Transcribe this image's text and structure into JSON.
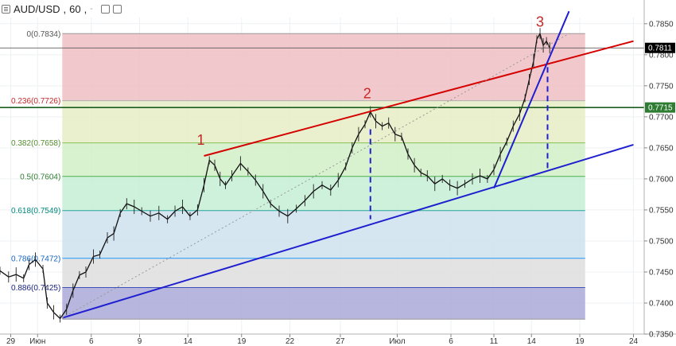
{
  "toolbar": {
    "symbol": "AUD/USD",
    "separator": ",",
    "interval": "60",
    "dropdown_caret": "-",
    "icons": [
      "menu-icon",
      "box-icon",
      "box-icon"
    ]
  },
  "chart_data": {
    "type": "candlestick",
    "title": "AUD/USD, 60",
    "ylim": [
      0.735,
      0.786
    ],
    "y_ticks": [
      "0.7850",
      "0.7800",
      "0.7750",
      "0.7700",
      "0.7650",
      "0.7600",
      "0.7550",
      "0.7500",
      "0.7450",
      "0.7400",
      "0.7350"
    ],
    "x_ticks": [
      "29",
      "Июн",
      "6",
      "9",
      "14",
      "19",
      "22",
      "27",
      "Июл",
      "6",
      "11",
      "14",
      "19",
      "24"
    ],
    "x_tick_days": [
      -2,
      0.5,
      5.5,
      10,
      14.5,
      19.5,
      24,
      28.7,
      34,
      39,
      43,
      46.5,
      51,
      56
    ],
    "price_series": [
      {
        "day": -3.0,
        "price": 0.7452
      },
      {
        "day": -2.2,
        "price": 0.7442
      },
      {
        "day": -1.5,
        "price": 0.7446
      },
      {
        "day": -0.8,
        "price": 0.744
      },
      {
        "day": -0.3,
        "price": 0.7462
      },
      {
        "day": 0.3,
        "price": 0.747
      },
      {
        "day": 1.0,
        "price": 0.7455
      },
      {
        "day": 1.4,
        "price": 0.74
      },
      {
        "day": 2.0,
        "price": 0.7385
      },
      {
        "day": 2.6,
        "price": 0.7375
      },
      {
        "day": 3.2,
        "price": 0.739
      },
      {
        "day": 3.8,
        "price": 0.742
      },
      {
        "day": 4.4,
        "price": 0.7445
      },
      {
        "day": 5.0,
        "price": 0.745
      },
      {
        "day": 5.7,
        "price": 0.7475
      },
      {
        "day": 6.3,
        "price": 0.7478
      },
      {
        "day": 7.0,
        "price": 0.7505
      },
      {
        "day": 7.6,
        "price": 0.7512
      },
      {
        "day": 8.2,
        "price": 0.7545
      },
      {
        "day": 8.8,
        "price": 0.756
      },
      {
        "day": 9.5,
        "price": 0.7555
      },
      {
        "day": 10.2,
        "price": 0.7548
      },
      {
        "day": 11.0,
        "price": 0.754
      },
      {
        "day": 11.8,
        "price": 0.7545
      },
      {
        "day": 12.6,
        "price": 0.7535
      },
      {
        "day": 13.3,
        "price": 0.7548
      },
      {
        "day": 14.0,
        "price": 0.7555
      },
      {
        "day": 14.7,
        "price": 0.754
      },
      {
        "day": 15.4,
        "price": 0.755
      },
      {
        "day": 16.0,
        "price": 0.759
      },
      {
        "day": 16.5,
        "price": 0.763
      },
      {
        "day": 17.0,
        "price": 0.7622
      },
      {
        "day": 17.5,
        "price": 0.76
      },
      {
        "day": 18.0,
        "price": 0.759
      },
      {
        "day": 18.6,
        "price": 0.7605
      },
      {
        "day": 19.4,
        "price": 0.7625
      },
      {
        "day": 20.1,
        "price": 0.7612
      },
      {
        "day": 20.8,
        "price": 0.7598
      },
      {
        "day": 21.5,
        "price": 0.758
      },
      {
        "day": 22.2,
        "price": 0.756
      },
      {
        "day": 23.0,
        "price": 0.7548
      },
      {
        "day": 23.8,
        "price": 0.754
      },
      {
        "day": 24.6,
        "price": 0.7552
      },
      {
        "day": 25.4,
        "price": 0.7565
      },
      {
        "day": 26.2,
        "price": 0.758
      },
      {
        "day": 27.0,
        "price": 0.759
      },
      {
        "day": 27.8,
        "price": 0.7582
      },
      {
        "day": 28.5,
        "price": 0.7598
      },
      {
        "day": 29.2,
        "price": 0.762
      },
      {
        "day": 29.8,
        "price": 0.765
      },
      {
        "day": 30.4,
        "price": 0.7672
      },
      {
        "day": 31.0,
        "price": 0.7688
      },
      {
        "day": 31.5,
        "price": 0.7708
      },
      {
        "day": 32.0,
        "price": 0.7693
      },
      {
        "day": 32.6,
        "price": 0.7685
      },
      {
        "day": 33.2,
        "price": 0.769
      },
      {
        "day": 33.8,
        "price": 0.7672
      },
      {
        "day": 34.4,
        "price": 0.7668
      },
      {
        "day": 35.0,
        "price": 0.764
      },
      {
        "day": 35.6,
        "price": 0.7622
      },
      {
        "day": 36.2,
        "price": 0.761
      },
      {
        "day": 36.8,
        "price": 0.7605
      },
      {
        "day": 37.5,
        "price": 0.7592
      },
      {
        "day": 38.2,
        "price": 0.76
      },
      {
        "day": 38.9,
        "price": 0.759
      },
      {
        "day": 39.6,
        "price": 0.7585
      },
      {
        "day": 40.3,
        "price": 0.7592
      },
      {
        "day": 41.0,
        "price": 0.76
      },
      {
        "day": 41.7,
        "price": 0.7605
      },
      {
        "day": 42.4,
        "price": 0.76
      },
      {
        "day": 43.0,
        "price": 0.7615
      },
      {
        "day": 43.6,
        "price": 0.764
      },
      {
        "day": 44.2,
        "price": 0.766
      },
      {
        "day": 44.8,
        "price": 0.7685
      },
      {
        "day": 45.4,
        "price": 0.7705
      },
      {
        "day": 45.9,
        "price": 0.773
      },
      {
        "day": 46.3,
        "price": 0.776
      },
      {
        "day": 46.7,
        "price": 0.779
      },
      {
        "day": 47.0,
        "price": 0.7825
      },
      {
        "day": 47.3,
        "price": 0.7834
      },
      {
        "day": 47.6,
        "price": 0.7815
      },
      {
        "day": 47.9,
        "price": 0.7822
      },
      {
        "day": 48.2,
        "price": 0.7811
      }
    ],
    "fibonacci": {
      "levels": [
        {
          "ratio": "0",
          "price": 0.7834,
          "label": "0(0.7834)",
          "line_color": "#999999",
          "fill": "#efbfc3"
        },
        {
          "ratio": "0.236",
          "price": 0.7726,
          "label": "0.236(0.7726)",
          "line_color": "#b0b0b0",
          "fill": "#e6ecc4"
        },
        {
          "ratio": "0.382",
          "price": 0.7658,
          "label": "0.382(0.7658)",
          "line_color": "#88c057",
          "fill": "#d1efc6"
        },
        {
          "ratio": "0.5",
          "price": 0.7604,
          "label": "0.5(0.7604)",
          "line_color": "#4caf50",
          "fill": "#c5efd5"
        },
        {
          "ratio": "0.618",
          "price": 0.7549,
          "label": "0.618(0.7549)",
          "line_color": "#26a69a",
          "fill": "#cfe2ef"
        },
        {
          "ratio": "0.786",
          "price": 0.7472,
          "label": "0.786(0.7472)",
          "line_color": "#2196f3",
          "fill": "#dedede"
        },
        {
          "ratio": "0.886",
          "price": 0.7425,
          "label": "0.886(0.7425)",
          "line_color": "#3f51b5",
          "fill": "#a9a9d8"
        },
        {
          "ratio": "1",
          "price": 0.7374,
          "label": "",
          "line_color": "#999999",
          "fill": ""
        }
      ],
      "label_colors": [
        "#555555",
        "#c62828",
        "#558b2f",
        "#2e7d32",
        "#00897b",
        "#1565c0",
        "#1a237e"
      ]
    },
    "trendlines": [
      {
        "name": "red-channel",
        "color": "#d50000",
        "from": {
          "day": 16.0,
          "price": 0.7637
        },
        "to": {
          "day": 56.0,
          "price": 0.7822
        }
      },
      {
        "name": "blue-support",
        "color": "#1f1fd0",
        "from": {
          "day": 2.8,
          "price": 0.7376
        },
        "to": {
          "day": 56.0,
          "price": 0.7655
        }
      },
      {
        "name": "blue-steep",
        "color": "#1f1fd0",
        "from": {
          "day": 43.0,
          "price": 0.7585
        },
        "to": {
          "day": 50.0,
          "price": 0.787
        }
      },
      {
        "name": "dotted-gray",
        "color": "#999999",
        "from": {
          "day": 2.8,
          "price": 0.7376
        },
        "to": {
          "day": 50.0,
          "price": 0.7834
        }
      }
    ],
    "dashed_verticals": [
      {
        "day": 31.5,
        "from": 0.768,
        "to": 0.7535
      },
      {
        "day": 48.0,
        "from": 0.778,
        "to": 0.7615
      }
    ],
    "wave_labels": [
      {
        "text": "1",
        "day": 15.7,
        "price": 0.7655
      },
      {
        "text": "2",
        "day": 31.2,
        "price": 0.773
      },
      {
        "text": "3",
        "day": 47.3,
        "price": 0.7845
      }
    ],
    "horizontal_levels": [
      {
        "price": 0.7811,
        "color": "#444444",
        "badge_bg": "#000000",
        "label": "0.7811"
      },
      {
        "price": 0.7715,
        "color": "#1b5e20",
        "badge_bg": "#2e7d32",
        "label": "0.7715"
      }
    ]
  }
}
